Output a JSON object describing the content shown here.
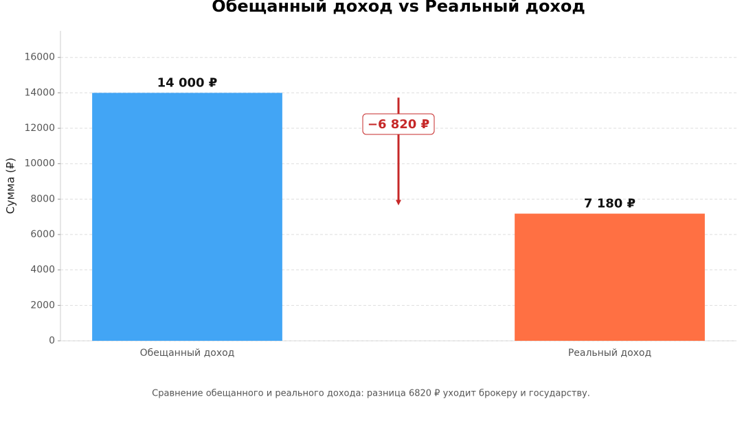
{
  "chart_data": {
    "type": "bar",
    "title": "Обещанный доход vs Реальный доход",
    "y_label": "Сумма (₽)",
    "categories": [
      "Обещанный доход",
      "Реальный доход"
    ],
    "values": [
      14000,
      7180
    ],
    "value_labels": [
      "14 000 ₽",
      "7 180 ₽"
    ],
    "colors": [
      "#42a5f5",
      "#ff7043"
    ],
    "ylim": [
      0,
      17500
    ],
    "yticks": [
      0,
      2000,
      4000,
      6000,
      8000,
      10000,
      12000,
      14000,
      16000
    ],
    "grid": true,
    "annotation": "−6 820 ₽",
    "annotation_color": "#c62828",
    "caption": "Сравнение обещанного и реального дохода: разница 6820 ₽ уходит брокеру и государству."
  }
}
